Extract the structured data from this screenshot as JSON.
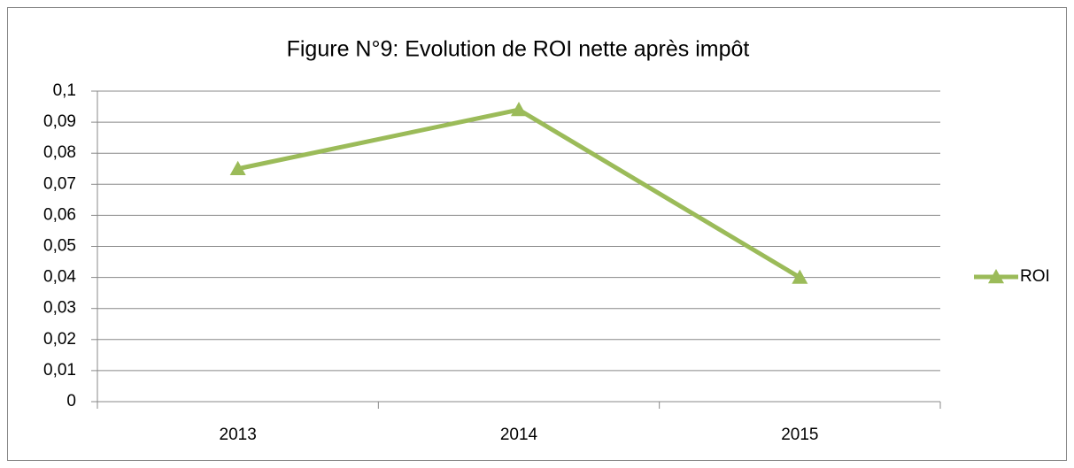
{
  "chart_data": {
    "type": "line",
    "title": "Figure N°9: Evolution de ROI nette après impôt",
    "categories": [
      "2013",
      "2014",
      "2015"
    ],
    "series": [
      {
        "name": "ROI",
        "color": "#9bbb59",
        "values": [
          0.075,
          0.094,
          0.04
        ]
      }
    ],
    "ylim": [
      0,
      0.1
    ],
    "yticks": [
      0,
      {
        "value": 0.01,
        "label": "0,01"
      },
      {
        "value": 0.02,
        "label": "0,02"
      },
      {
        "value": 0.03,
        "label": "0,03"
      },
      {
        "value": 0.04,
        "label": "0,04"
      },
      {
        "value": 0.05,
        "label": "0,05"
      },
      {
        "value": 0.06,
        "label": "0,06"
      },
      {
        "value": 0.07,
        "label": "0,07"
      },
      {
        "value": 0.08,
        "label": "0,08"
      },
      {
        "value": 0.09,
        "label": "0,09"
      },
      {
        "value": 0.1,
        "label": "0,1"
      }
    ],
    "grid": true,
    "legend": "right"
  }
}
